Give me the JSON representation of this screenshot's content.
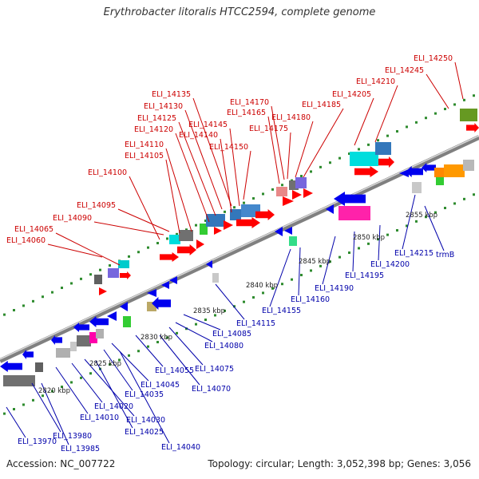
{
  "title": "Erythrobacter litoralis HTCC2594, complete genome",
  "footer": {
    "accession": "Accession: NC_007722",
    "summary": "Topology: circular; Length: 3,052,398 bp; Genes: 3,056"
  },
  "scale_ticks": [
    "2820 kbp",
    "2825 kbp",
    "2830 kbp",
    "2835 kbp",
    "2840 kbp",
    "2845 kbp",
    "2850 kbp",
    "2855 kbp"
  ],
  "colors": {
    "forward_label": "#cc0000",
    "reverse_label": "#0000aa",
    "backbone": "#888888",
    "tick": "#228b22"
  },
  "forward_labels": [
    "ELI_14060",
    "ELI_14065",
    "ELI_14090",
    "ELI_14095",
    "ELI_14100",
    "ELI_14105",
    "ELI_14110",
    "ELI_14120",
    "ELI_14125",
    "ELI_14130",
    "ELI_14135",
    "ELI_14140",
    "ELI_14145",
    "ELI_14150",
    "ELI_14165",
    "ELI_14170",
    "ELI_14175",
    "ELI_14180",
    "ELI_14185",
    "ELI_14205",
    "ELI_14210",
    "ELI_14245",
    "ELI_14250"
  ],
  "reverse_labels": [
    "ELI_13970",
    "ELI_13980",
    "ELI_13985",
    "ELI_14010",
    "ELI_14020",
    "ELI_14025",
    "ELI_14030",
    "ELI_14035",
    "ELI_14040",
    "ELI_14045",
    "ELI_14055",
    "ELI_14070",
    "ELI_14075",
    "ELI_14080",
    "ELI_14085",
    "ELI_14115",
    "ELI_14155",
    "ELI_14160",
    "ELI_14190",
    "ELI_14195",
    "ELI_14200",
    "ELI_14215",
    "trmB"
  ]
}
